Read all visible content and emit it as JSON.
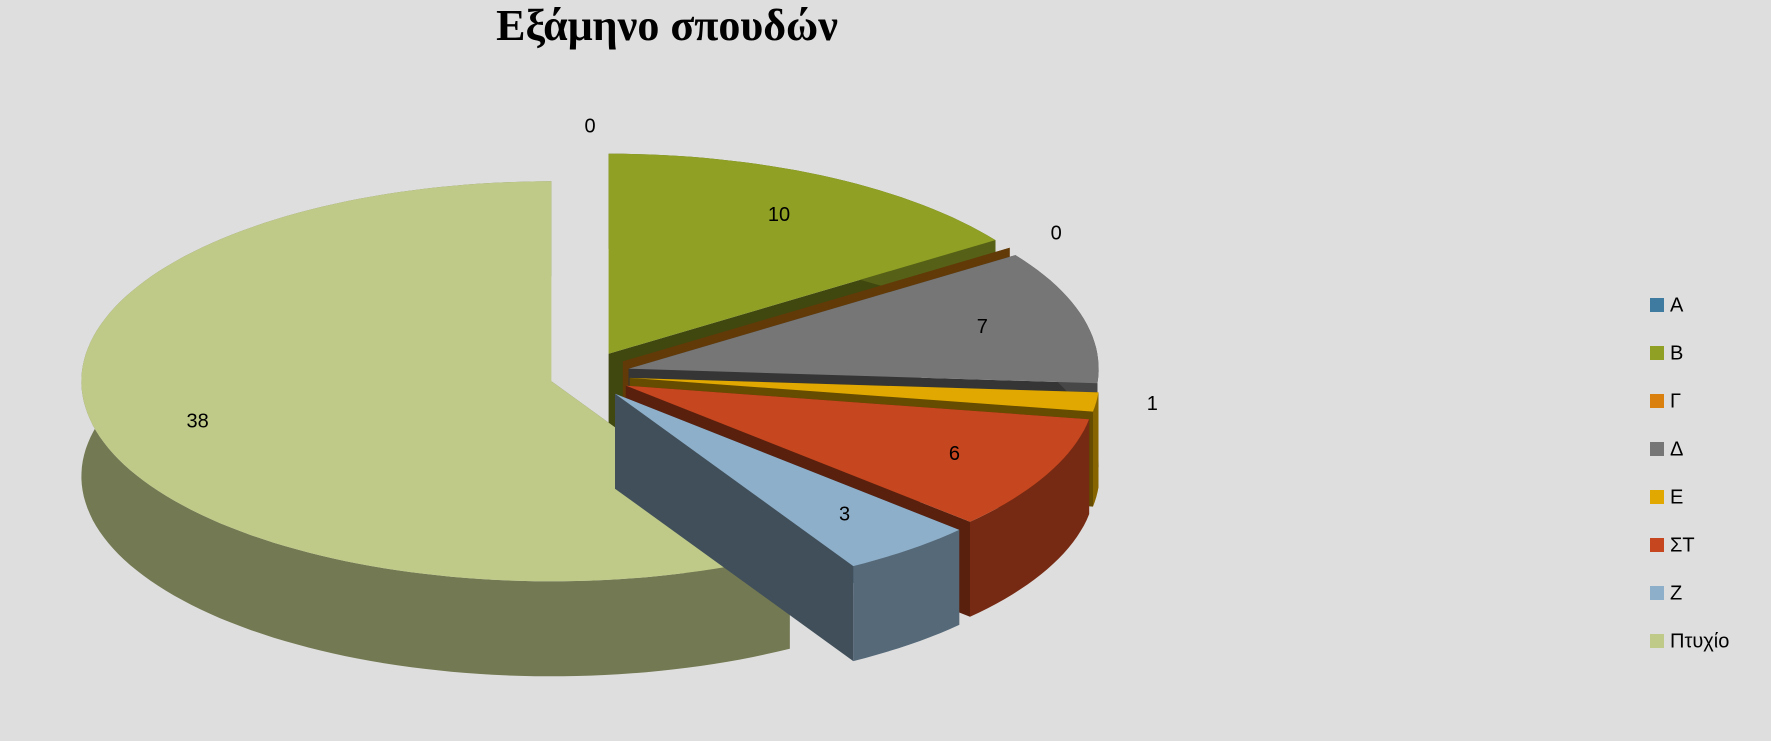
{
  "chart_data": {
    "type": "pie3d",
    "title": "Εξάμηνο σπουδών",
    "categories": [
      "Α",
      "Β",
      "Γ",
      "Δ",
      "Ε",
      "ΣΤ",
      "Ζ",
      "Πτυχίο"
    ],
    "values": [
      0,
      10,
      0,
      7,
      1,
      6,
      3,
      38
    ],
    "colors": [
      "#3f7ba0",
      "#8fa024",
      "#d9800f",
      "#767676",
      "#e0a800",
      "#c5461f",
      "#8eafc9",
      "#bfca88"
    ],
    "legend": "right"
  }
}
